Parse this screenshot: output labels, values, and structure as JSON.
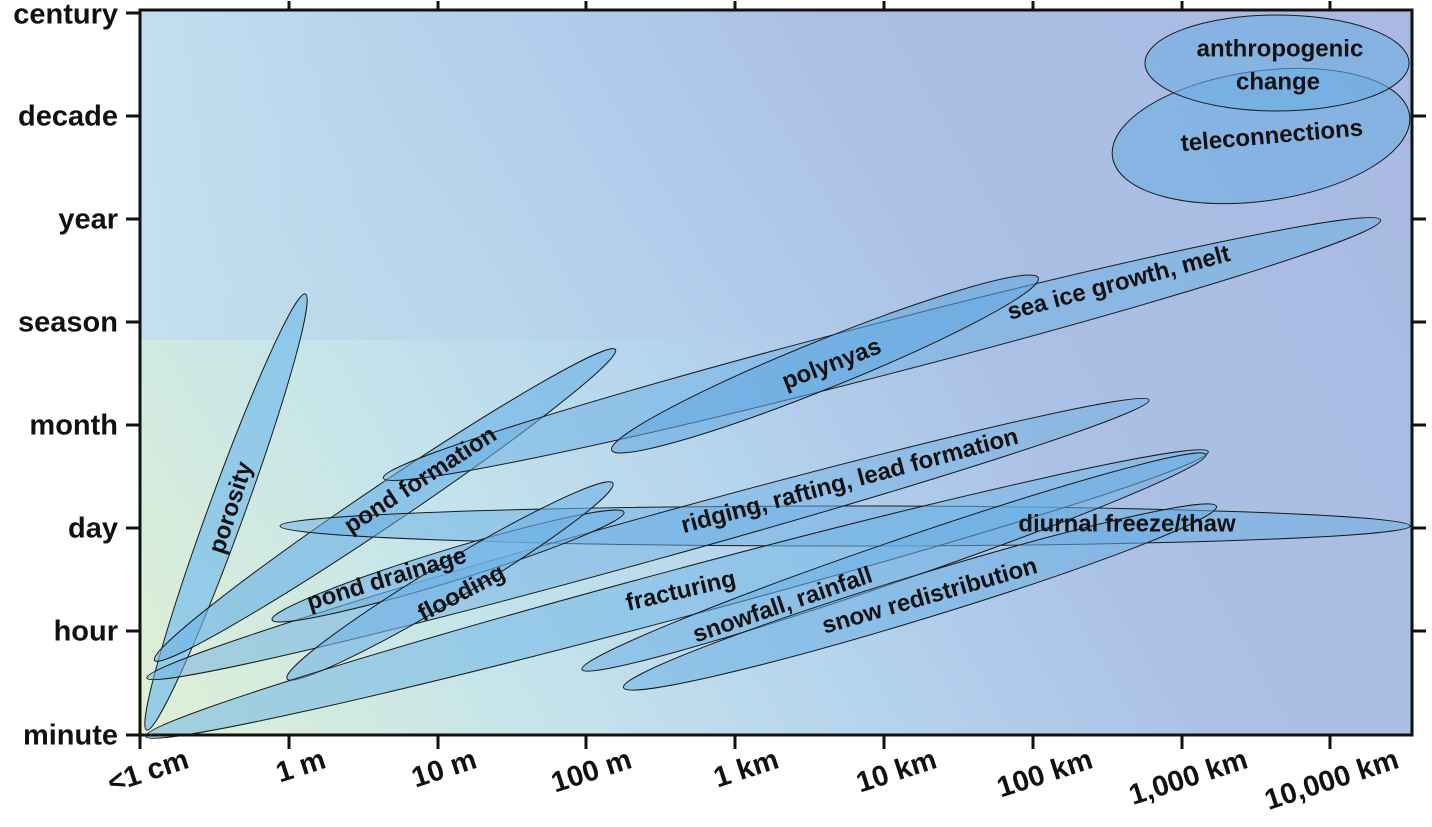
{
  "diagram": {
    "y_axis": {
      "ticks": [
        "minute",
        "hour",
        "day",
        "month",
        "season",
        "year",
        "decade",
        "century"
      ]
    },
    "x_axis": {
      "ticks": [
        "<1 cm",
        "1 m",
        "10 m",
        "100 m",
        "1 km",
        "10 km",
        "100 km",
        "1,000 km",
        "10,000 km"
      ]
    },
    "processes": [
      {
        "id": "porosity",
        "label": "porosity",
        "fill": "#7ec0ea",
        "opacity": 0.75
      },
      {
        "id": "pond-formation",
        "label": "pond formation",
        "fill": "#6fb3e6",
        "opacity": 0.65
      },
      {
        "id": "pond-drainage",
        "label": "pond drainage",
        "fill": "#6fb3e6",
        "opacity": 0.6
      },
      {
        "id": "flooding",
        "label": "flooding",
        "fill": "#6fb3e6",
        "opacity": 0.6
      },
      {
        "id": "polynyas",
        "label": "polynyas",
        "fill": "#5ea6e0",
        "opacity": 0.55
      },
      {
        "id": "sea-ice-growth-melt",
        "label": "sea ice growth, melt",
        "fill": "#6fb0e4",
        "opacity": 0.55
      },
      {
        "id": "ridging-rafting-lead-formation",
        "label": "ridging, rafting, lead formation",
        "fill": "#6fb0e4",
        "opacity": 0.5
      },
      {
        "id": "diurnal-freeze-thaw",
        "label": "diurnal freeze/thaw",
        "fill": "#6aaee3",
        "opacity": 0.5
      },
      {
        "id": "fracturing",
        "label": "fracturing",
        "fill": "#72b6e6",
        "opacity": 0.55
      },
      {
        "id": "snowfall-rainfall",
        "label": "snowfall, rainfall",
        "fill": "#6aaee3",
        "opacity": 0.55
      },
      {
        "id": "snow-redistribution",
        "label": "snow redistribution",
        "fill": "#6aaee3",
        "opacity": 0.55
      },
      {
        "id": "anthropogenic-change",
        "label_lines": [
          "anthropogenic",
          "change"
        ],
        "fill": "#6eaee2",
        "opacity": 0.6
      },
      {
        "id": "teleconnections",
        "label": "teleconnections",
        "fill": "#6eaee2",
        "opacity": 0.6
      }
    ]
  }
}
